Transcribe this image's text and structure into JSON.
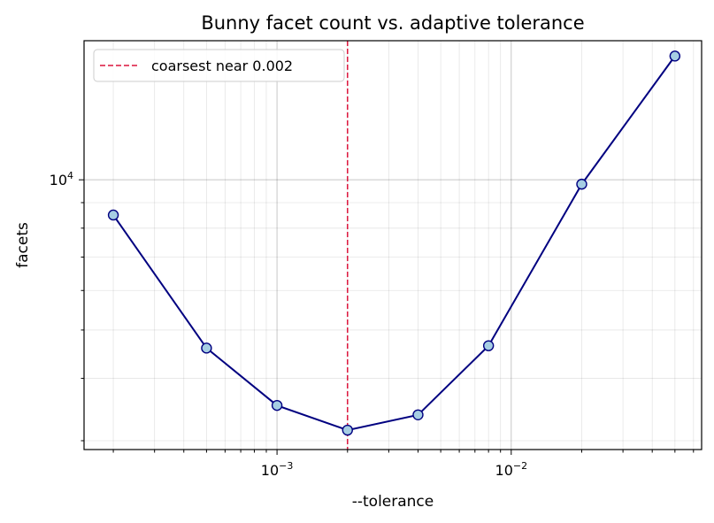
{
  "chart_data": {
    "type": "line",
    "title": "Bunny facet count vs. adaptive tolerance",
    "xlabel": "--tolerance",
    "ylabel": "facets",
    "x_scale": "log",
    "y_scale": "log",
    "xlim": [
      0.00015,
      0.065
    ],
    "ylim": [
      2880,
      19000
    ],
    "x_major_ticks": [
      {
        "value": 0.001,
        "base": "10",
        "exp": "−3"
      },
      {
        "value": 0.01,
        "base": "10",
        "exp": "−2"
      }
    ],
    "y_major_ticks": [
      {
        "value": 10000,
        "base": "10",
        "exp": "4"
      }
    ],
    "grid": true,
    "series": [
      {
        "x": [
          0.0002,
          0.0005,
          0.001,
          0.002,
          0.004,
          0.008,
          0.02,
          0.05
        ],
        "y": [
          8500,
          4600,
          3530,
          3150,
          3380,
          4650,
          9800,
          17700
        ],
        "line_color": "#000080",
        "marker_face": "#a6cee3",
        "marker_edge": "#000080"
      }
    ],
    "reference_line": {
      "x": 0.002,
      "label": "coarsest near 0.002",
      "color": "#dc143c",
      "style": "dashed"
    },
    "legend_position": "upper-left"
  }
}
